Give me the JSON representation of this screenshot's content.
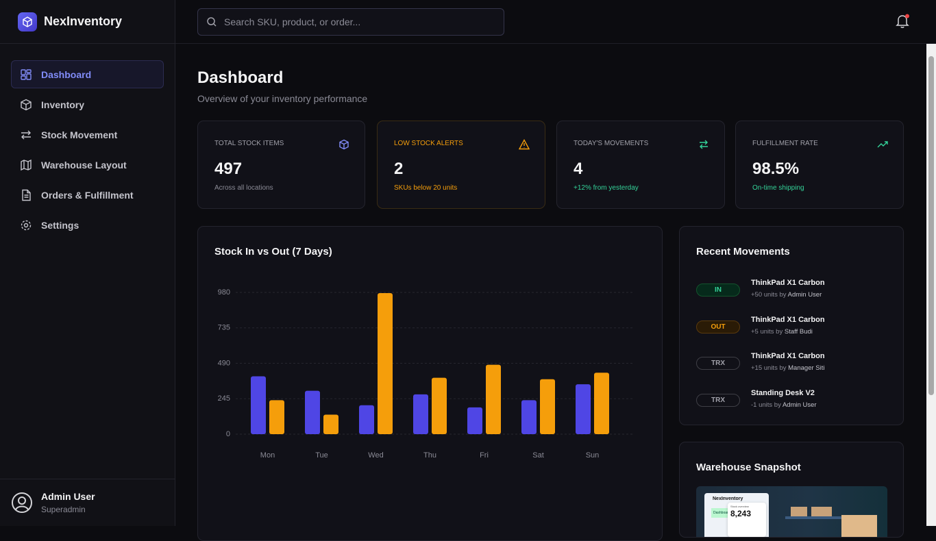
{
  "brand": "NexInventory",
  "search_placeholder": "Search SKU, product, or order...",
  "nav": [
    {
      "label": "Dashboard",
      "active": true
    },
    {
      "label": "Inventory",
      "active": false
    },
    {
      "label": "Stock Movement",
      "active": false
    },
    {
      "label": "Warehouse Layout",
      "active": false
    },
    {
      "label": "Orders & Fulfillment",
      "active": false
    },
    {
      "label": "Settings",
      "active": false
    }
  ],
  "user": {
    "name": "Admin User",
    "role": "Superadmin"
  },
  "header": {
    "title": "Dashboard",
    "subtitle": "Overview of your inventory performance"
  },
  "stats": [
    {
      "label": "TOTAL STOCK ITEMS",
      "value": 497,
      "note": "Across all locations",
      "color": "#818cf8"
    },
    {
      "label": "LOW STOCK ALERTS",
      "value": 2,
      "note": "SKUs below 20 units",
      "color": "#f59e0b"
    },
    {
      "label": "TODAY'S MOVEMENTS",
      "value": 4,
      "note": "+12% from yesterday",
      "color": "#34d399"
    },
    {
      "label": "FULFILLMENT RATE",
      "value": "98.5%",
      "note": "On-time shipping",
      "color": "#34d399"
    }
  ],
  "chart_data": {
    "type": "bar",
    "title": "Stock In vs Out (7 Days)",
    "categories": [
      "Mon",
      "Tue",
      "Wed",
      "Thu",
      "Fri",
      "Sat",
      "Sun"
    ],
    "series": [
      {
        "color": "#4f46e5",
        "values": [
          400,
          300,
          200,
          275,
          185,
          235,
          345
        ]
      },
      {
        "color": "#f59e0b",
        "values": [
          235,
          135,
          975,
          390,
          480,
          380,
          425
        ]
      }
    ],
    "ylim": [
      0,
      980
    ],
    "yticks": [
      0,
      245,
      490,
      735,
      980
    ],
    "grid": true
  },
  "recent_movements": {
    "title": "Recent Movements",
    "items": [
      {
        "type": "IN",
        "product": "ThinkPad X1 Carbon",
        "detail": "+50 units by",
        "user": "Admin User"
      },
      {
        "type": "OUT",
        "product": "ThinkPad X1 Carbon",
        "detail": "+5 units by",
        "user": "Staff Budi"
      },
      {
        "type": "TRX",
        "product": "ThinkPad X1 Carbon",
        "detail": "+15 units by",
        "user": "Manager Siti"
      },
      {
        "type": "TRX",
        "product": "Standing Desk V2",
        "detail": "-1 units by",
        "user": "Admin User"
      }
    ]
  },
  "warehouse_snapshot": {
    "title": "Warehouse Snapshot",
    "image_brand": "NexInventory",
    "image_nav": "Dashboard",
    "image_caption": "Stock overview",
    "image_value": "8,243"
  }
}
